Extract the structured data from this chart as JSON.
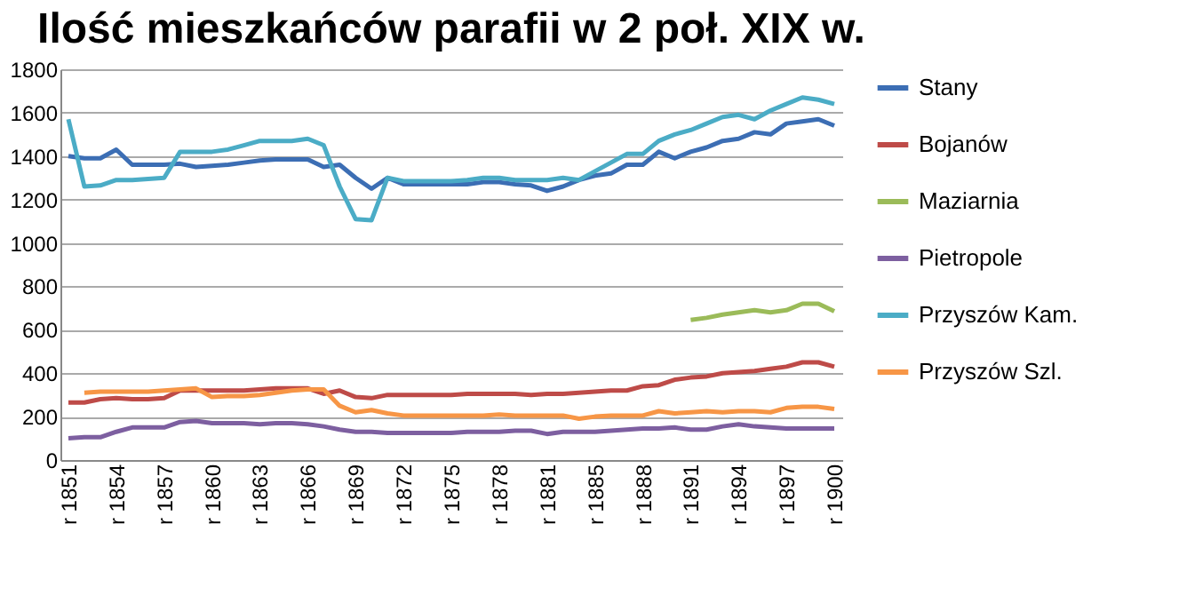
{
  "chart_data": {
    "type": "line",
    "title": "Ilość mieszkańców parafii w 2 poł. XIX w.",
    "categories": [
      "r 1851",
      null,
      null,
      "r 1854",
      null,
      null,
      "r 1857",
      null,
      null,
      "r 1860",
      null,
      null,
      "r 1863",
      null,
      null,
      "r 1866",
      null,
      null,
      "r 1869",
      null,
      null,
      "r 1872",
      null,
      null,
      "r 1875",
      null,
      null,
      "r 1878",
      null,
      null,
      "r 1881",
      null,
      null,
      "r 1885",
      null,
      null,
      "r 1888",
      null,
      null,
      "r 1891",
      null,
      null,
      "r 1894",
      null,
      null,
      "r 1897",
      null,
      null,
      "r 1900"
    ],
    "series": [
      {
        "name": "Stany",
        "color": "#3c6eb4",
        "values": [
          1400,
          1390,
          1390,
          1430,
          1360,
          1360,
          1360,
          1365,
          1350,
          1355,
          1360,
          1370,
          1380,
          1385,
          1385,
          1385,
          1350,
          1360,
          1300,
          1250,
          1300,
          1270,
          1270,
          1270,
          1270,
          1270,
          1280,
          1280,
          1270,
          1265,
          1240,
          1260,
          1290,
          1310,
          1320,
          1360,
          1360,
          1420,
          1390,
          1420,
          1440,
          1470,
          1480,
          1510,
          1500,
          1550,
          1560,
          1570,
          1540
        ]
      },
      {
        "name": "Bojanów",
        "color": "#be4b48",
        "values": [
          265,
          265,
          280,
          285,
          280,
          280,
          285,
          320,
          320,
          320,
          320,
          320,
          325,
          330,
          330,
          330,
          305,
          320,
          290,
          285,
          300,
          300,
          300,
          300,
          300,
          305,
          305,
          305,
          305,
          300,
          305,
          305,
          310,
          315,
          320,
          320,
          340,
          345,
          370,
          380,
          385,
          400,
          405,
          410,
          420,
          430,
          450,
          450,
          430
        ]
      },
      {
        "name": "Maziarnia",
        "color": "#9bbb59",
        "values": [
          null,
          null,
          null,
          null,
          null,
          null,
          null,
          null,
          null,
          null,
          null,
          null,
          null,
          null,
          null,
          null,
          null,
          null,
          null,
          null,
          null,
          null,
          null,
          null,
          null,
          null,
          null,
          null,
          null,
          null,
          null,
          null,
          null,
          null,
          null,
          null,
          null,
          null,
          null,
          645,
          655,
          670,
          680,
          690,
          680,
          690,
          720,
          720,
          685
        ]
      },
      {
        "name": "Pietropole",
        "color": "#7d5fa0",
        "values": [
          100,
          105,
          105,
          130,
          150,
          150,
          150,
          175,
          180,
          170,
          170,
          170,
          165,
          170,
          170,
          165,
          155,
          140,
          130,
          130,
          125,
          125,
          125,
          125,
          125,
          130,
          130,
          130,
          135,
          135,
          120,
          130,
          130,
          130,
          135,
          140,
          145,
          145,
          150,
          140,
          140,
          155,
          165,
          155,
          150,
          145,
          145,
          145,
          145
        ]
      },
      {
        "name": "Przyszów Kam.",
        "color": "#4bacc6",
        "values": [
          1570,
          1260,
          1265,
          1290,
          1290,
          1295,
          1300,
          1420,
          1420,
          1420,
          1430,
          1450,
          1470,
          1470,
          1470,
          1480,
          1450,
          1260,
          1110,
          1105,
          1300,
          1285,
          1285,
          1285,
          1285,
          1290,
          1300,
          1300,
          1290,
          1290,
          1290,
          1300,
          1290,
          1330,
          1370,
          1410,
          1410,
          1470,
          1500,
          1520,
          1550,
          1580,
          1590,
          1570,
          1610,
          1640,
          1670,
          1660,
          1640
        ]
      },
      {
        "name": "Przyszów Szl.",
        "color": "#f79646",
        "values": [
          null,
          310,
          315,
          315,
          315,
          315,
          320,
          325,
          330,
          290,
          295,
          295,
          300,
          310,
          320,
          325,
          325,
          250,
          220,
          230,
          215,
          205,
          205,
          205,
          205,
          205,
          205,
          210,
          205,
          205,
          205,
          205,
          190,
          200,
          205,
          205,
          205,
          225,
          215,
          220,
          225,
          220,
          225,
          225,
          220,
          240,
          245,
          245,
          235
        ]
      }
    ],
    "ylim": [
      0,
      1800
    ],
    "yticks": [
      0,
      200,
      400,
      600,
      800,
      1000,
      1200,
      1400,
      1600,
      1800
    ],
    "grid": "y",
    "legend": "right",
    "marker": "none",
    "line_style": "solid"
  }
}
